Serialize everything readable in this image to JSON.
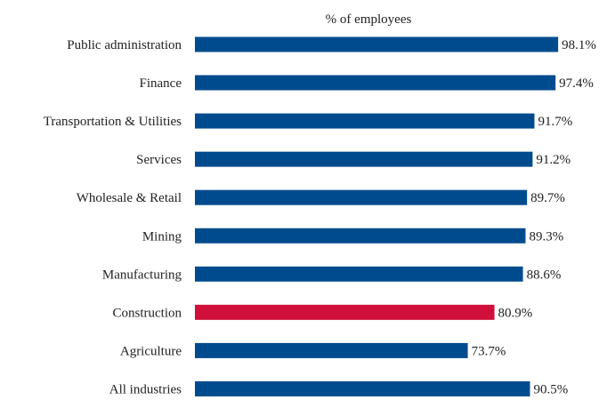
{
  "chart_data": {
    "type": "bar",
    "orientation": "horizontal",
    "title": "% of employees",
    "categories": [
      "Public administration",
      "Finance",
      "Transportation & Utilities",
      "Services",
      "Wholesale & Retail",
      "Mining",
      "Manufacturing",
      "Construction",
      "Agriculture",
      "All industries"
    ],
    "values": [
      98.1,
      97.4,
      91.7,
      91.2,
      89.7,
      89.3,
      88.6,
      80.9,
      73.7,
      90.5
    ],
    "value_labels": [
      "98.1%",
      "97.4%",
      "91.7%",
      "91.2%",
      "89.7%",
      "89.3%",
      "88.6%",
      "80.9%",
      "73.7%",
      "90.5%"
    ],
    "bar_colors": [
      "#004b8d",
      "#004b8d",
      "#004b8d",
      "#004b8d",
      "#004b8d",
      "#004b8d",
      "#004b8d",
      "#d0103a",
      "#004b8d",
      "#004b8d"
    ],
    "xlim": [
      0,
      100
    ],
    "grid": false,
    "legend": "none"
  }
}
